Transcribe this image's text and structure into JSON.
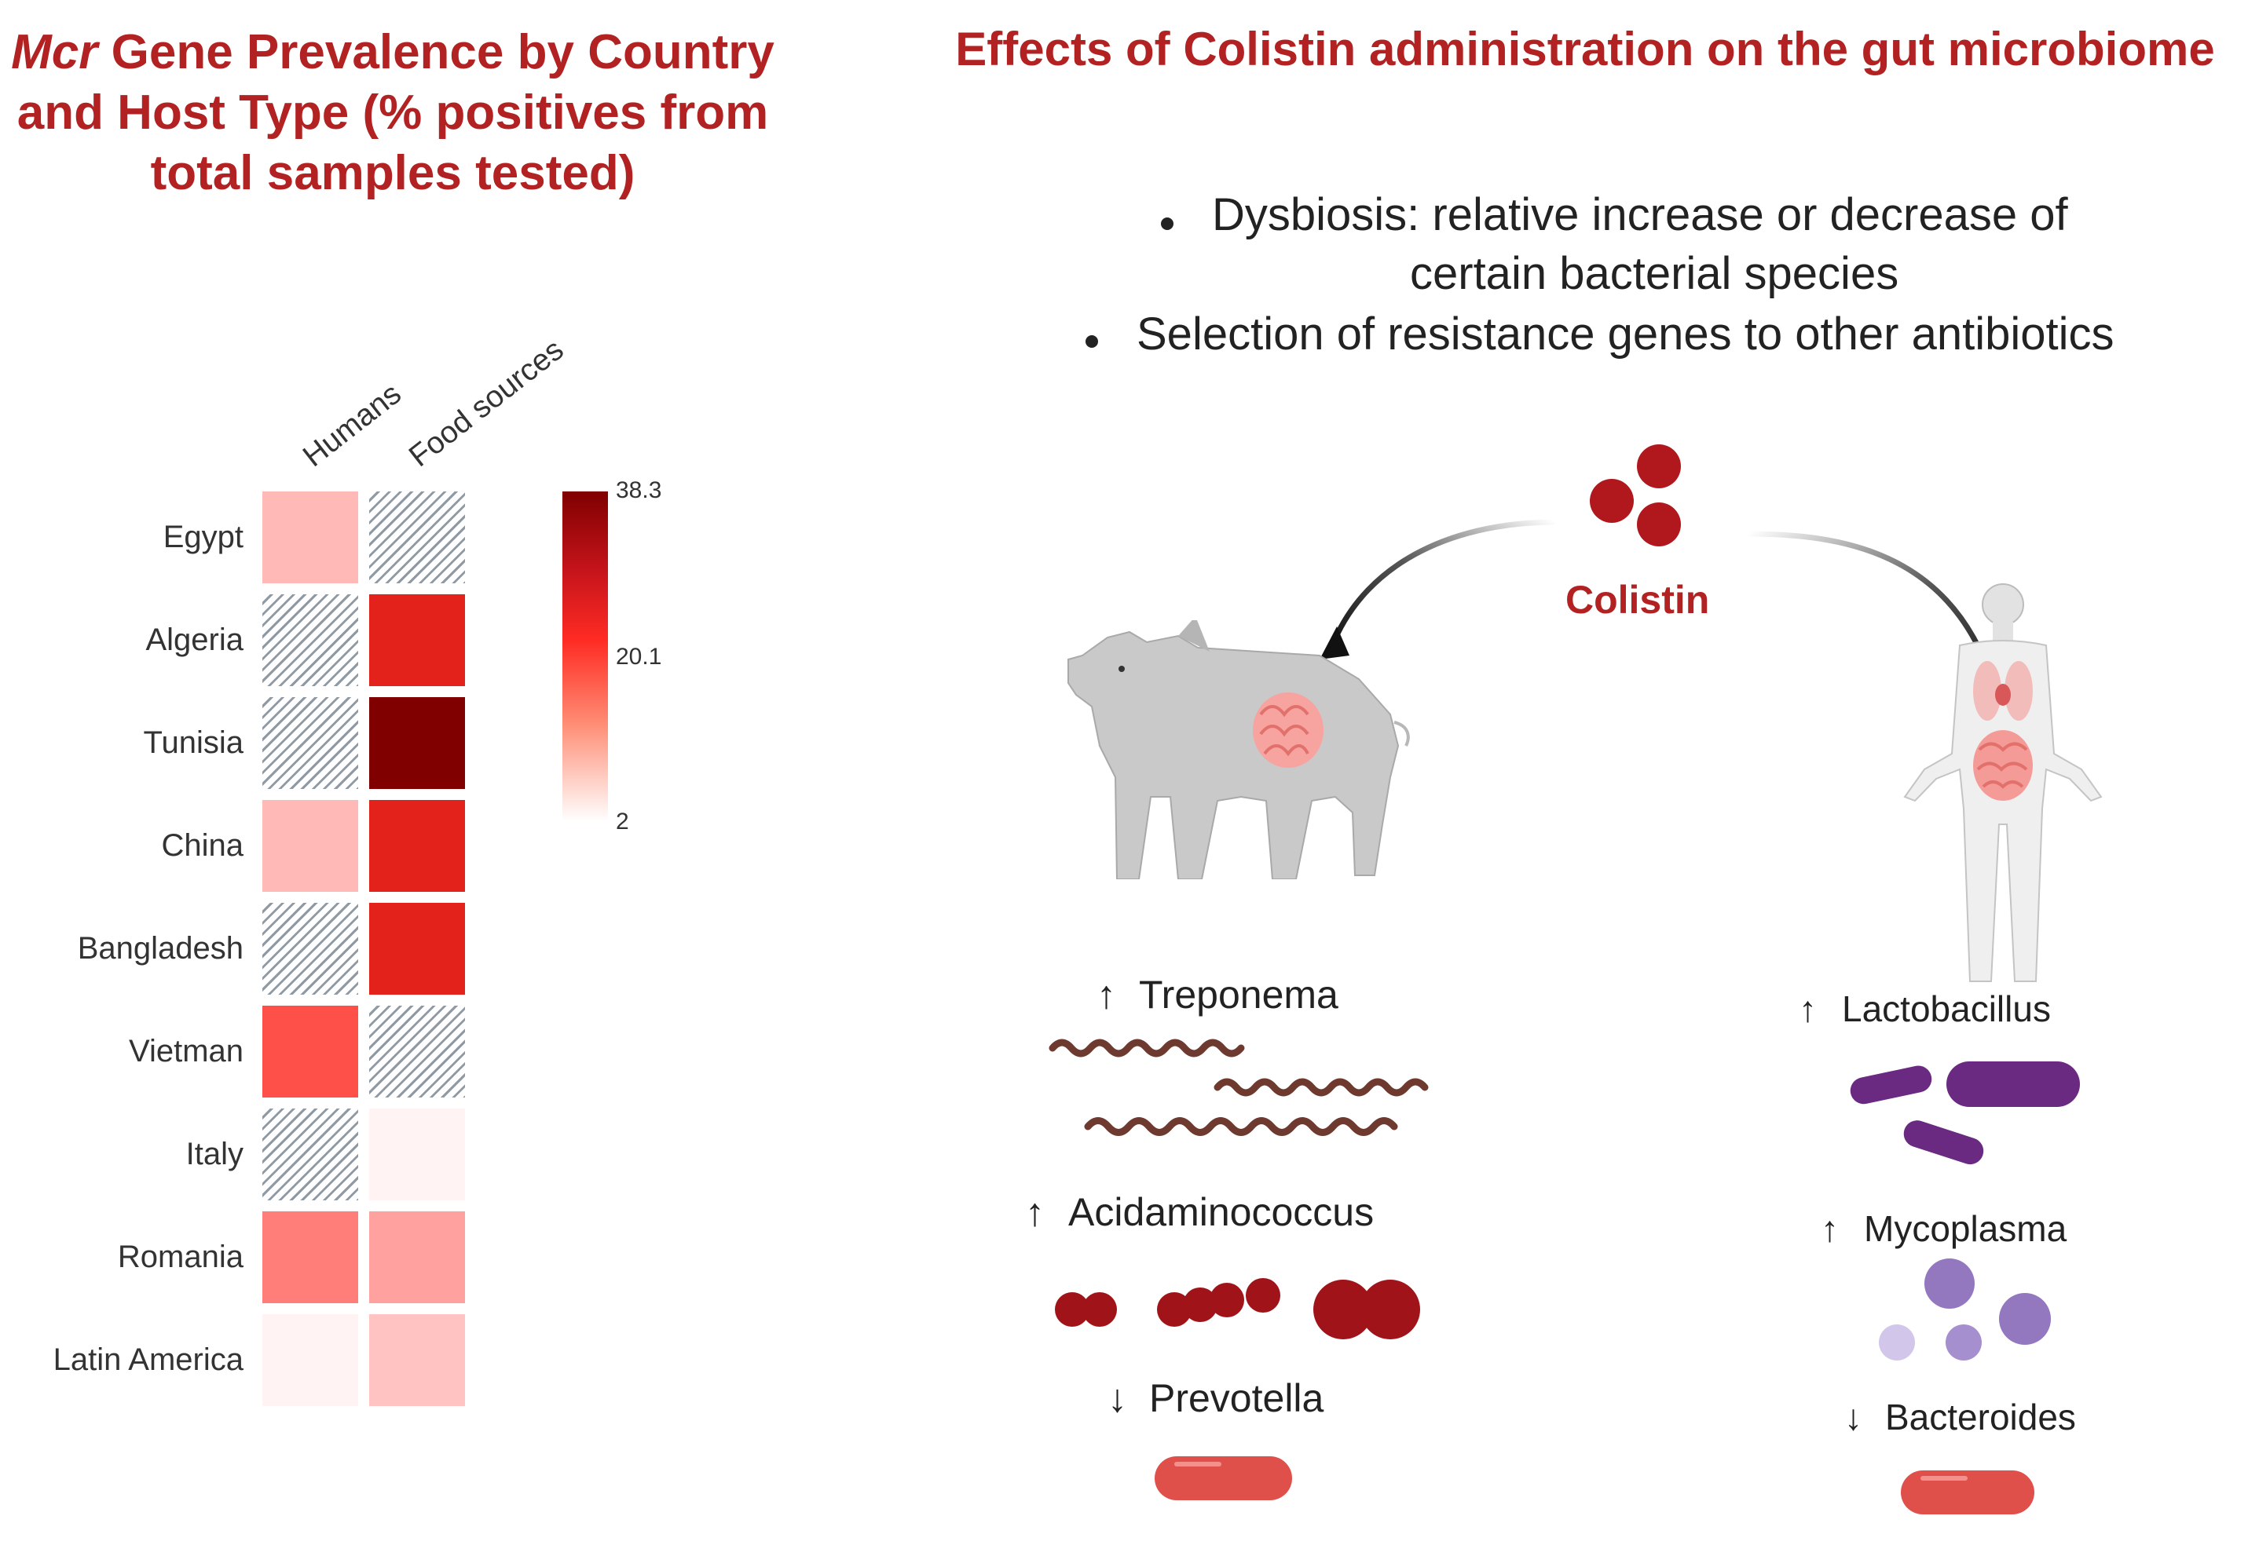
{
  "chart_data": {
    "type": "heatmap",
    "title_italic": "Mcr",
    "title_rest": " Gene Prevalence by Country and Host Type (% positives from total samples tested)",
    "columns": [
      "Humans",
      "Food sources"
    ],
    "rows": [
      "Egypt",
      "Algeria",
      "Tunisia",
      "China",
      "Bangladesh",
      "Vietman",
      "Italy",
      "Romania",
      "Latin America"
    ],
    "values": [
      [
        8,
        null
      ],
      [
        null,
        24
      ],
      [
        null,
        38.3
      ],
      [
        8,
        24
      ],
      [
        null,
        24
      ],
      [
        17,
        null
      ],
      [
        null,
        3
      ],
      [
        13,
        10
      ],
      [
        3,
        7
      ]
    ],
    "missing_pattern": "hatched",
    "colorbar": {
      "min": 2,
      "mid": 20.1,
      "max": 38.3,
      "ticks": [
        "38.3",
        "20.1",
        "2"
      ]
    },
    "colors": {
      "low": "#ffffff",
      "mid": "#ff2b23",
      "high": "#800000"
    }
  },
  "panel": {
    "title": "Effects of Colistin administration on the gut microbiome",
    "bullets": [
      {
        "line1": "Dysbiosis: relative increase or decrease of",
        "line2": "certain bacterial species"
      },
      {
        "line1": "Selection of resistance genes to other antibiotics"
      }
    ],
    "colistin_label": "Colistin",
    "pig": {
      "taxa": [
        {
          "arrow": "↑",
          "name": "Treponema"
        },
        {
          "arrow": "↑",
          "name": "Acidaminococcus"
        },
        {
          "arrow": "↓",
          "name": "Prevotella"
        }
      ]
    },
    "human": {
      "taxa": [
        {
          "arrow": "↑",
          "name": "Lactobacillus"
        },
        {
          "arrow": "↑",
          "name": "Mycoplasma"
        },
        {
          "arrow": "↓",
          "name": "Bacteroides"
        }
      ]
    },
    "colors": {
      "accent": "#b22222",
      "colistin_dot": "#b0181e",
      "spirochete": "#6e3a30",
      "coccus": "#a01319",
      "lactobacillus": "#6a2a82",
      "mycoplasma": "#9378c0",
      "rod": "#e0504b"
    }
  }
}
